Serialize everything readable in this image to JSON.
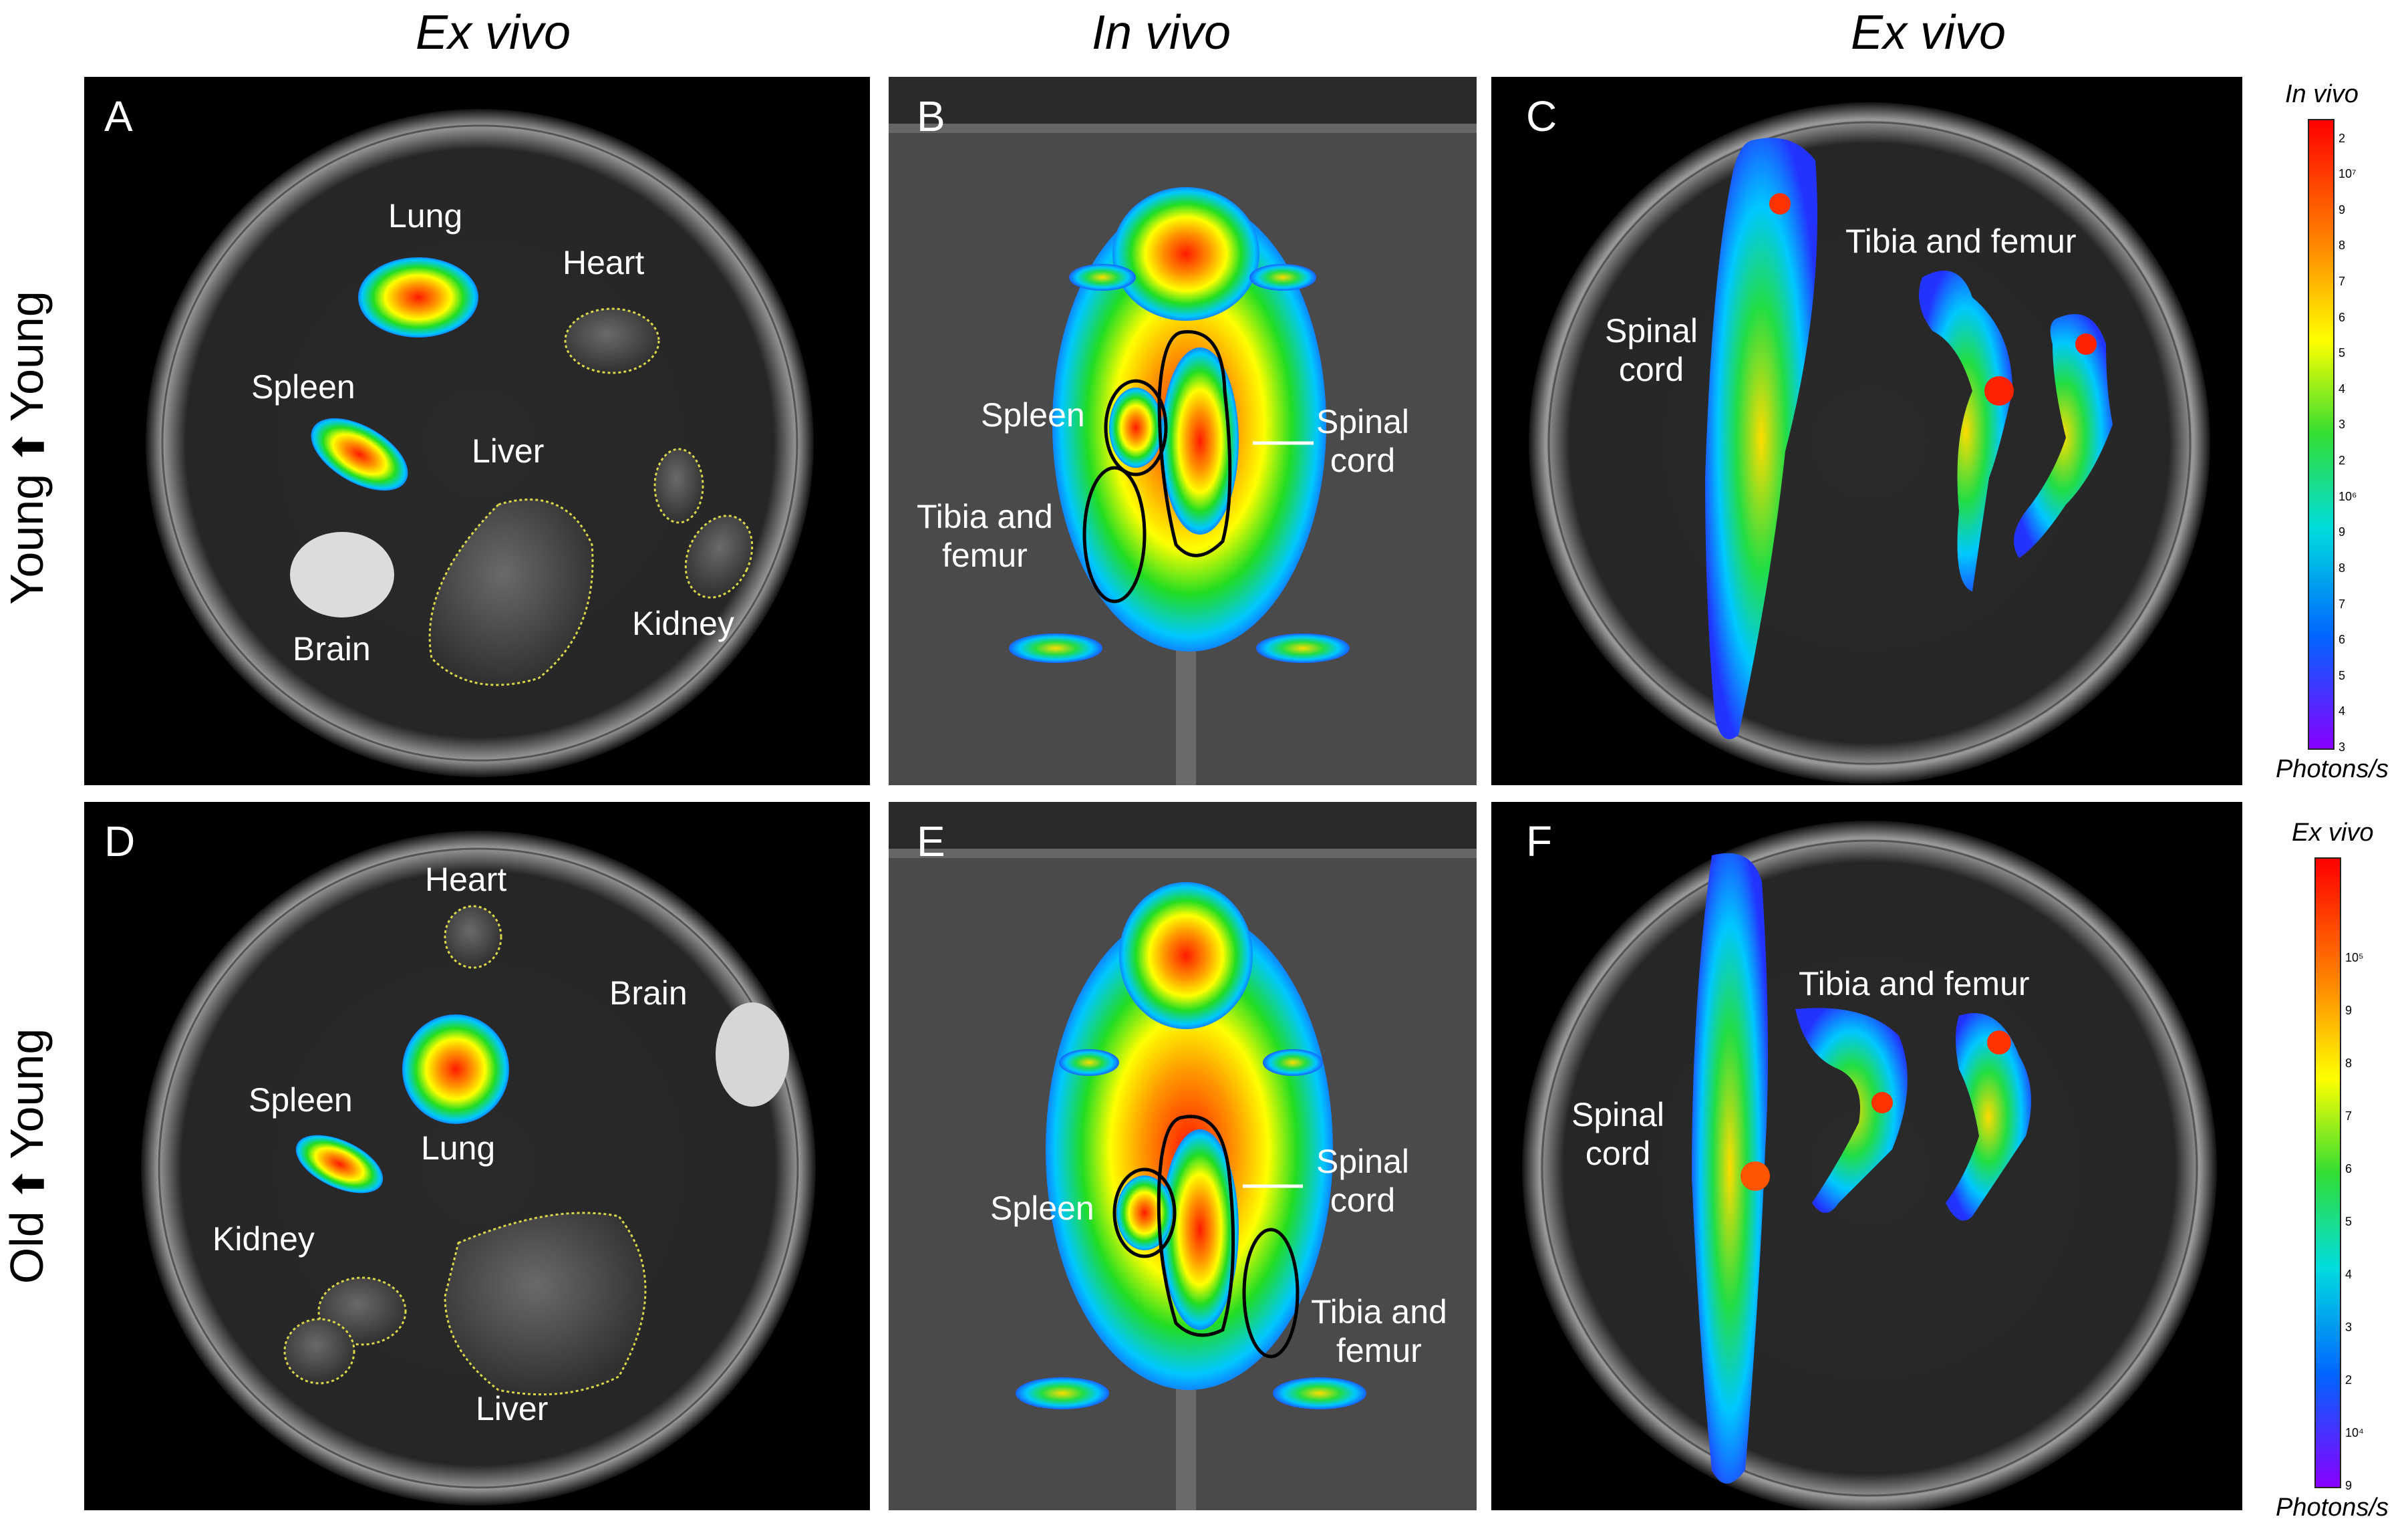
{
  "columns": [
    "Ex vivo",
    "In vivo",
    "Ex vivo"
  ],
  "rows": [
    "Young",
    "Young",
    "Old",
    "Young"
  ],
  "panels": {
    "A": {
      "letter": "A",
      "labels": {
        "lung": "Lung",
        "heart": "Heart",
        "spleen": "Spleen",
        "liver": "Liver",
        "brain": "Brain",
        "kidney": "Kidney"
      }
    },
    "B": {
      "letter": "B",
      "labels": {
        "spleen": "Spleen",
        "spinal_cord": "Spinal\ncord",
        "tibia_femur": "Tibia and\nfemur"
      }
    },
    "C": {
      "letter": "C",
      "labels": {
        "spinal_cord": "Spinal\ncord",
        "tibia_femur": "Tibia and femur"
      }
    },
    "D": {
      "letter": "D",
      "labels": {
        "heart": "Heart",
        "brain": "Brain",
        "spleen": "Spleen",
        "lung": "Lung",
        "kidney": "Kidney",
        "liver": "Liver"
      }
    },
    "E": {
      "letter": "E",
      "labels": {
        "spleen": "Spleen",
        "spinal_cord": "Spinal\ncord",
        "tibia_femur": "Tibia and\nfemur"
      }
    },
    "F": {
      "letter": "F",
      "labels": {
        "spinal_cord": "Spinal\ncord",
        "tibia_femur": "Tibia and femur"
      }
    }
  },
  "scale_top": {
    "title": "In vivo",
    "unit": "Photons/s",
    "ticks": [
      "2",
      "10⁷",
      "9",
      "8",
      "7",
      "6",
      "5",
      "4",
      "3",
      "2",
      "10⁶",
      "9",
      "8",
      "7",
      "6",
      "5",
      "4",
      "3"
    ]
  },
  "scale_bottom": {
    "title": "Ex vivo",
    "unit": "Photons/s",
    "ticks": [
      "10⁵",
      "9",
      "8",
      "7",
      "6",
      "5",
      "4",
      "3",
      "2",
      "10⁴",
      "9"
    ]
  },
  "colors": {
    "background": "#000000",
    "label": "#ffffff",
    "roi": "#d8d84a",
    "outline": "#000000"
  }
}
